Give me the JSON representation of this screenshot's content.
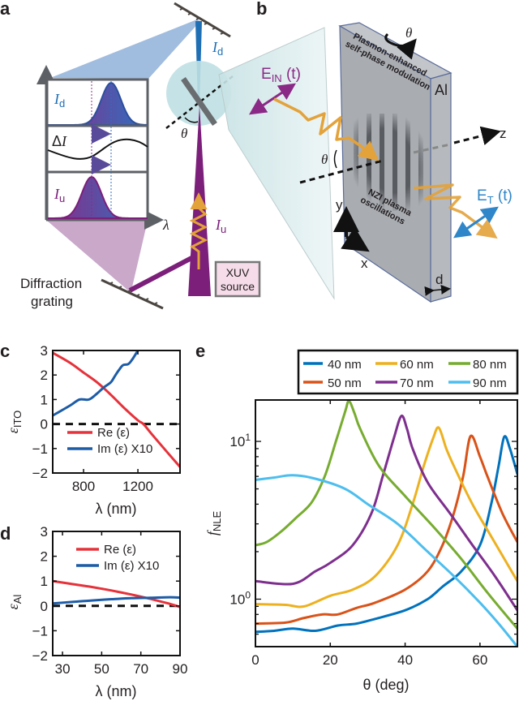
{
  "colors": {
    "re": "#e5323b",
    "im": "#1d5ca6",
    "s40": "#0072bd",
    "s50": "#d95319",
    "s60": "#edb120",
    "s70": "#7e2f8e",
    "s80": "#77ac30",
    "s90": "#4dbeee",
    "beam_blue": "#1f6fb5",
    "beam_purple": "#7b1f7a",
    "pulse": "#e3a23a"
  },
  "panel_labels": {
    "a": "a",
    "b": "b",
    "c": "c",
    "d": "d",
    "e": "e"
  },
  "panel_a": {
    "id_label": {
      "main": "I",
      "sub": "d"
    },
    "delta_label": {
      "main": "Δ",
      "it": "I"
    },
    "iu_label": {
      "main": "I",
      "sub": "u"
    },
    "lambda_axis": "λ",
    "theta": "θ",
    "beam_id": {
      "main": "I",
      "sub": "d"
    },
    "beam_iu": {
      "main": "I",
      "sub": "u"
    },
    "grating_line1": "Diffraction",
    "grating_line2": "grating",
    "source_line1": "XUV",
    "source_line2": "source"
  },
  "panel_b": {
    "e_in": {
      "main": "E",
      "sub": "IN",
      "rest": " (t)"
    },
    "e_t": {
      "main": "E",
      "sub": "T",
      "rest": " (t)"
    },
    "spm_line1": "Plasmon-enhanced",
    "spm_line2": "self-phase modulation",
    "material": "Al",
    "nzi_line1": "NZI plasma",
    "nzi_line2": "oscillations",
    "theta_top": "θ",
    "theta_side": "θ",
    "axis_z": "z",
    "axis_y": "y",
    "axis_x": "x",
    "thickness": "d"
  },
  "chart_data": [
    {
      "id": "c",
      "type": "line",
      "xlabel": "λ (nm)",
      "ylabel": {
        "main": "ε",
        "sub": "ITO"
      },
      "xlim": [
        573,
        1510
      ],
      "ylim": [
        -2,
        3
      ],
      "xticks": [
        800,
        1200
      ],
      "yticks": [
        -2,
        -1,
        0,
        1,
        2,
        3
      ],
      "zero_line": "dashed",
      "legend_placement": "bottom-left",
      "series": [
        {
          "name": "Re (ε)",
          "color_key": "re",
          "x": [
            575,
            700,
            800,
            900,
            1000,
            1100,
            1200,
            1240,
            1300,
            1400,
            1510
          ],
          "y": [
            2.9,
            2.5,
            2.1,
            1.7,
            1.2,
            0.65,
            0.15,
            0.0,
            -0.4,
            -1.05,
            -1.75
          ]
        },
        {
          "name": "Im (ε) X10",
          "color_key": "im",
          "x": [
            575,
            700,
            770,
            840,
            900,
            950,
            1000,
            1030,
            1060,
            1090,
            1130,
            1160,
            1200
          ],
          "y": [
            0.35,
            0.75,
            1.0,
            1.0,
            1.25,
            1.5,
            1.7,
            1.95,
            2.2,
            2.4,
            2.45,
            2.65,
            3.0
          ]
        }
      ]
    },
    {
      "id": "d",
      "type": "line",
      "xlabel": "λ (nm)",
      "ylabel": {
        "main": "ε",
        "sub": "Al"
      },
      "xlim": [
        25,
        90
      ],
      "ylim": [
        -2,
        3
      ],
      "xticks": [
        30,
        50,
        70,
        90
      ],
      "yticks": [
        -2,
        -1,
        0,
        1,
        2,
        3
      ],
      "zero_line": "dashed",
      "legend_placement": "top-right",
      "series": [
        {
          "name": "Re (ε)",
          "color_key": "re",
          "x": [
            25,
            35,
            45,
            55,
            65,
            75,
            85,
            90
          ],
          "y": [
            1.0,
            0.88,
            0.76,
            0.62,
            0.46,
            0.28,
            0.08,
            -0.05
          ]
        },
        {
          "name": "Im (ε) X10",
          "color_key": "im",
          "x": [
            25,
            35,
            45,
            55,
            65,
            75,
            85,
            90
          ],
          "y": [
            0.1,
            0.16,
            0.22,
            0.27,
            0.31,
            0.33,
            0.35,
            0.33
          ]
        }
      ]
    },
    {
      "id": "e",
      "type": "line",
      "xlabel": "θ (deg)",
      "ylabel": {
        "main": "f",
        "sub": "NLE"
      },
      "xlim": [
        0,
        70
      ],
      "ylim": [
        0.5,
        18.3
      ],
      "yscale": "log",
      "xticks": [
        0,
        20,
        40,
        60
      ],
      "yticks": [
        {
          "value": 1,
          "base": "10",
          "exp": "0"
        },
        {
          "value": 10,
          "base": "10",
          "exp": "1"
        }
      ],
      "legend_placement": "top (outside)",
      "series": [
        {
          "name": "40 nm",
          "color_key": "s40",
          "x": [
            0,
            5,
            10,
            16,
            22,
            27,
            32,
            40,
            46,
            50,
            55,
            60,
            63,
            65,
            66.5,
            68,
            70
          ],
          "y": [
            0.62,
            0.63,
            0.65,
            0.63,
            0.68,
            0.7,
            0.75,
            0.85,
            1.0,
            1.2,
            1.5,
            2.2,
            4.0,
            7.0,
            10.7,
            9.0,
            6.2
          ]
        },
        {
          "name": "50 nm",
          "color_key": "s50",
          "x": [
            0,
            8,
            13,
            18,
            22,
            27,
            32,
            40,
            46,
            50,
            53,
            55.5,
            57.5,
            60,
            62,
            66,
            70
          ],
          "y": [
            0.7,
            0.71,
            0.76,
            0.8,
            0.8,
            0.88,
            0.95,
            1.15,
            1.5,
            2.2,
            3.5,
            6.0,
            10.8,
            8.0,
            6.0,
            3.5,
            2.3
          ]
        },
        {
          "name": "60 nm",
          "color_key": "s60",
          "x": [
            0,
            8,
            13,
            20,
            26,
            32,
            38,
            42,
            45,
            47.5,
            49,
            51,
            53,
            58,
            63,
            70
          ],
          "y": [
            0.93,
            0.92,
            0.9,
            1.05,
            1.15,
            1.4,
            2.2,
            4.0,
            7.0,
            10.5,
            12.2,
            9.0,
            7.0,
            4.0,
            2.5,
            1.3
          ]
        },
        {
          "name": "70 nm",
          "color_key": "s70",
          "x": [
            0,
            10,
            16,
            20,
            26,
            31,
            34,
            37,
            39,
            40.5,
            42,
            46,
            52,
            58,
            64,
            70
          ],
          "y": [
            1.3,
            1.25,
            1.5,
            1.7,
            2.2,
            3.5,
            6.0,
            10.5,
            14.5,
            12.0,
            9.0,
            5.5,
            3.5,
            2.2,
            1.4,
            0.85
          ]
        },
        {
          "name": "80 nm",
          "color_key": "s80",
          "x": [
            0,
            3,
            7,
            11,
            15,
            18.5,
            21.5,
            24,
            25,
            26.5,
            28,
            33,
            40,
            48,
            55,
            62,
            70
          ],
          "y": [
            2.2,
            2.3,
            2.7,
            3.3,
            4.1,
            6.0,
            10.0,
            15.5,
            18.0,
            15.0,
            12.0,
            7.0,
            4.5,
            2.8,
            1.8,
            1.1,
            0.65
          ]
        },
        {
          "name": "90 nm",
          "color_key": "s90",
          "x": [
            0,
            5,
            10,
            16,
            24,
            30,
            38,
            46,
            53,
            60,
            65,
            70
          ],
          "y": [
            5.7,
            5.9,
            6.1,
            5.8,
            5.0,
            4.0,
            3.0,
            2.0,
            1.4,
            0.95,
            0.7,
            0.5
          ]
        }
      ]
    }
  ]
}
